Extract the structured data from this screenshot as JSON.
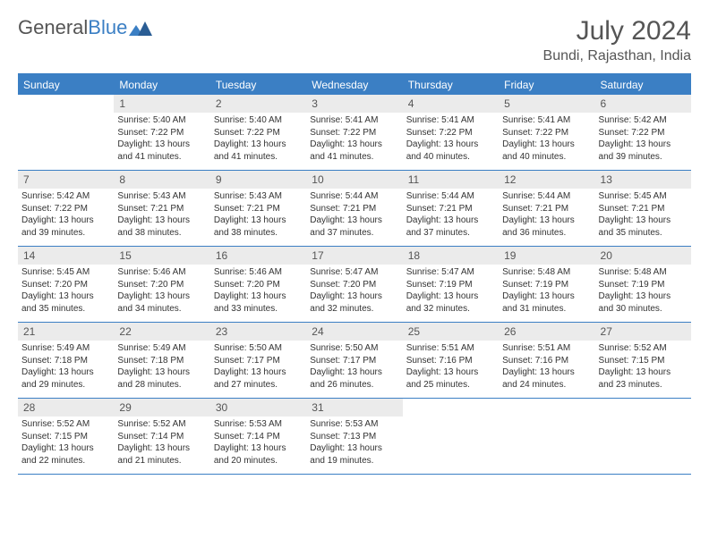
{
  "logo": {
    "text1": "General",
    "text2": "Blue"
  },
  "title": "July 2024",
  "location": "Bundi, Rajasthan, India",
  "colors": {
    "accent": "#3b7fc4",
    "header_bg": "#3b7fc4",
    "header_text": "#ffffff",
    "daynum_bg": "#ebebeb",
    "text": "#333333",
    "muted": "#555555",
    "border": "#3b7fc4"
  },
  "weekdays": [
    "Sunday",
    "Monday",
    "Tuesday",
    "Wednesday",
    "Thursday",
    "Friday",
    "Saturday"
  ],
  "weeks": [
    [
      {
        "n": "",
        "sunrise": "",
        "sunset": "",
        "daylight": ""
      },
      {
        "n": "1",
        "sunrise": "Sunrise: 5:40 AM",
        "sunset": "Sunset: 7:22 PM",
        "daylight": "Daylight: 13 hours and 41 minutes."
      },
      {
        "n": "2",
        "sunrise": "Sunrise: 5:40 AM",
        "sunset": "Sunset: 7:22 PM",
        "daylight": "Daylight: 13 hours and 41 minutes."
      },
      {
        "n": "3",
        "sunrise": "Sunrise: 5:41 AM",
        "sunset": "Sunset: 7:22 PM",
        "daylight": "Daylight: 13 hours and 41 minutes."
      },
      {
        "n": "4",
        "sunrise": "Sunrise: 5:41 AM",
        "sunset": "Sunset: 7:22 PM",
        "daylight": "Daylight: 13 hours and 40 minutes."
      },
      {
        "n": "5",
        "sunrise": "Sunrise: 5:41 AM",
        "sunset": "Sunset: 7:22 PM",
        "daylight": "Daylight: 13 hours and 40 minutes."
      },
      {
        "n": "6",
        "sunrise": "Sunrise: 5:42 AM",
        "sunset": "Sunset: 7:22 PM",
        "daylight": "Daylight: 13 hours and 39 minutes."
      }
    ],
    [
      {
        "n": "7",
        "sunrise": "Sunrise: 5:42 AM",
        "sunset": "Sunset: 7:22 PM",
        "daylight": "Daylight: 13 hours and 39 minutes."
      },
      {
        "n": "8",
        "sunrise": "Sunrise: 5:43 AM",
        "sunset": "Sunset: 7:21 PM",
        "daylight": "Daylight: 13 hours and 38 minutes."
      },
      {
        "n": "9",
        "sunrise": "Sunrise: 5:43 AM",
        "sunset": "Sunset: 7:21 PM",
        "daylight": "Daylight: 13 hours and 38 minutes."
      },
      {
        "n": "10",
        "sunrise": "Sunrise: 5:44 AM",
        "sunset": "Sunset: 7:21 PM",
        "daylight": "Daylight: 13 hours and 37 minutes."
      },
      {
        "n": "11",
        "sunrise": "Sunrise: 5:44 AM",
        "sunset": "Sunset: 7:21 PM",
        "daylight": "Daylight: 13 hours and 37 minutes."
      },
      {
        "n": "12",
        "sunrise": "Sunrise: 5:44 AM",
        "sunset": "Sunset: 7:21 PM",
        "daylight": "Daylight: 13 hours and 36 minutes."
      },
      {
        "n": "13",
        "sunrise": "Sunrise: 5:45 AM",
        "sunset": "Sunset: 7:21 PM",
        "daylight": "Daylight: 13 hours and 35 minutes."
      }
    ],
    [
      {
        "n": "14",
        "sunrise": "Sunrise: 5:45 AM",
        "sunset": "Sunset: 7:20 PM",
        "daylight": "Daylight: 13 hours and 35 minutes."
      },
      {
        "n": "15",
        "sunrise": "Sunrise: 5:46 AM",
        "sunset": "Sunset: 7:20 PM",
        "daylight": "Daylight: 13 hours and 34 minutes."
      },
      {
        "n": "16",
        "sunrise": "Sunrise: 5:46 AM",
        "sunset": "Sunset: 7:20 PM",
        "daylight": "Daylight: 13 hours and 33 minutes."
      },
      {
        "n": "17",
        "sunrise": "Sunrise: 5:47 AM",
        "sunset": "Sunset: 7:20 PM",
        "daylight": "Daylight: 13 hours and 32 minutes."
      },
      {
        "n": "18",
        "sunrise": "Sunrise: 5:47 AM",
        "sunset": "Sunset: 7:19 PM",
        "daylight": "Daylight: 13 hours and 32 minutes."
      },
      {
        "n": "19",
        "sunrise": "Sunrise: 5:48 AM",
        "sunset": "Sunset: 7:19 PM",
        "daylight": "Daylight: 13 hours and 31 minutes."
      },
      {
        "n": "20",
        "sunrise": "Sunrise: 5:48 AM",
        "sunset": "Sunset: 7:19 PM",
        "daylight": "Daylight: 13 hours and 30 minutes."
      }
    ],
    [
      {
        "n": "21",
        "sunrise": "Sunrise: 5:49 AM",
        "sunset": "Sunset: 7:18 PM",
        "daylight": "Daylight: 13 hours and 29 minutes."
      },
      {
        "n": "22",
        "sunrise": "Sunrise: 5:49 AM",
        "sunset": "Sunset: 7:18 PM",
        "daylight": "Daylight: 13 hours and 28 minutes."
      },
      {
        "n": "23",
        "sunrise": "Sunrise: 5:50 AM",
        "sunset": "Sunset: 7:17 PM",
        "daylight": "Daylight: 13 hours and 27 minutes."
      },
      {
        "n": "24",
        "sunrise": "Sunrise: 5:50 AM",
        "sunset": "Sunset: 7:17 PM",
        "daylight": "Daylight: 13 hours and 26 minutes."
      },
      {
        "n": "25",
        "sunrise": "Sunrise: 5:51 AM",
        "sunset": "Sunset: 7:16 PM",
        "daylight": "Daylight: 13 hours and 25 minutes."
      },
      {
        "n": "26",
        "sunrise": "Sunrise: 5:51 AM",
        "sunset": "Sunset: 7:16 PM",
        "daylight": "Daylight: 13 hours and 24 minutes."
      },
      {
        "n": "27",
        "sunrise": "Sunrise: 5:52 AM",
        "sunset": "Sunset: 7:15 PM",
        "daylight": "Daylight: 13 hours and 23 minutes."
      }
    ],
    [
      {
        "n": "28",
        "sunrise": "Sunrise: 5:52 AM",
        "sunset": "Sunset: 7:15 PM",
        "daylight": "Daylight: 13 hours and 22 minutes."
      },
      {
        "n": "29",
        "sunrise": "Sunrise: 5:52 AM",
        "sunset": "Sunset: 7:14 PM",
        "daylight": "Daylight: 13 hours and 21 minutes."
      },
      {
        "n": "30",
        "sunrise": "Sunrise: 5:53 AM",
        "sunset": "Sunset: 7:14 PM",
        "daylight": "Daylight: 13 hours and 20 minutes."
      },
      {
        "n": "31",
        "sunrise": "Sunrise: 5:53 AM",
        "sunset": "Sunset: 7:13 PM",
        "daylight": "Daylight: 13 hours and 19 minutes."
      },
      {
        "n": "",
        "sunrise": "",
        "sunset": "",
        "daylight": ""
      },
      {
        "n": "",
        "sunrise": "",
        "sunset": "",
        "daylight": ""
      },
      {
        "n": "",
        "sunrise": "",
        "sunset": "",
        "daylight": ""
      }
    ]
  ]
}
